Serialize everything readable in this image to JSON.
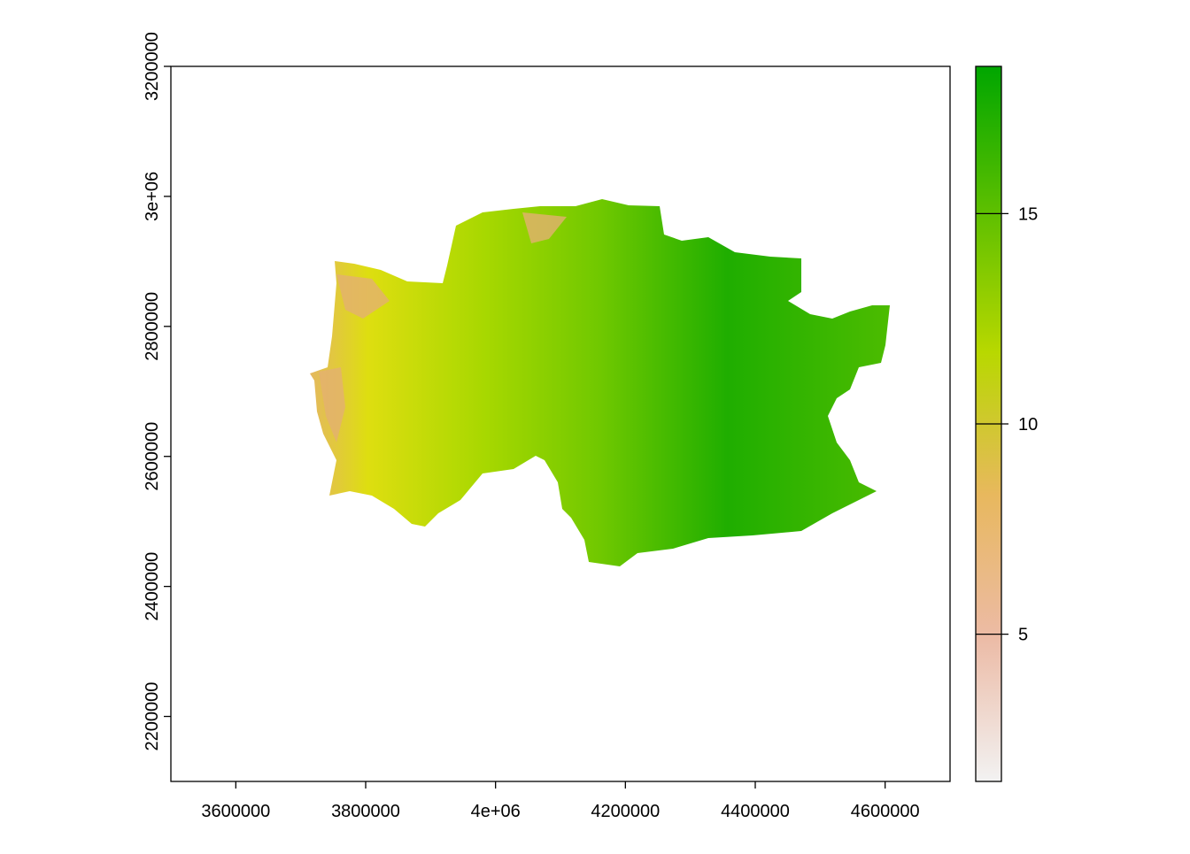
{
  "chart_data": {
    "type": "raster",
    "xlim": [
      3500000,
      4700000
    ],
    "xticks": [
      3600000,
      3800000,
      {
        "value": 4000000,
        "label": "4e+06"
      },
      4200000,
      4400000,
      4600000
    ],
    "ylim": [
      2100000,
      3200000
    ],
    "yticks": [
      2200000,
      2400000,
      2600000,
      2800000,
      {
        "value": 3000000,
        "label": "3e+06"
      },
      3200000
    ],
    "legend": {
      "lim": [
        1.5,
        18.5
      ],
      "ticks": [
        5,
        10,
        15
      ],
      "colors": [
        "#f2f2f2",
        "#ecbba6",
        "#e8b85e",
        "#b8d800",
        "#5cbf00",
        "#00a600"
      ]
    }
  }
}
